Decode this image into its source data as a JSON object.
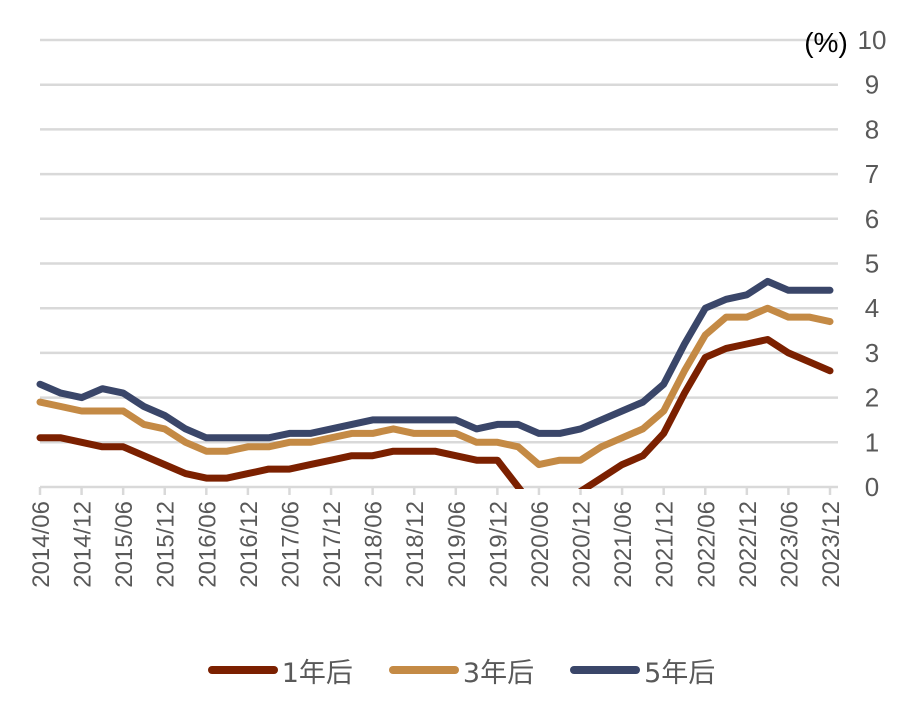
{
  "chart_data": {
    "type": "line",
    "title": "",
    "xlabel": "",
    "ylabel": "(%)",
    "y_unit_label": "(%)",
    "ylim": [
      0,
      10
    ],
    "yticks": [
      0,
      1,
      2,
      3,
      4,
      5,
      6,
      7,
      8,
      9,
      10
    ],
    "y_axis_position": "right",
    "grid": true,
    "legend_position": "bottom",
    "x_tick_labels": [
      "2014/06",
      "2014/12",
      "2015/06",
      "2015/12",
      "2016/06",
      "2016/12",
      "2017/06",
      "2017/12",
      "2018/06",
      "2018/12",
      "2019/06",
      "2019/12",
      "2020/06",
      "2020/12",
      "2021/06",
      "2021/12",
      "2022/06",
      "2022/12",
      "2023/06",
      "2023/12"
    ],
    "x": [
      "2014/06",
      "2014/09",
      "2014/12",
      "2015/03",
      "2015/06",
      "2015/09",
      "2015/12",
      "2016/03",
      "2016/06",
      "2016/09",
      "2016/12",
      "2017/03",
      "2017/06",
      "2017/09",
      "2017/12",
      "2018/03",
      "2018/06",
      "2018/09",
      "2018/12",
      "2019/03",
      "2019/06",
      "2019/09",
      "2019/12",
      "2020/03",
      "2020/06",
      "2020/09",
      "2020/12",
      "2021/03",
      "2021/06",
      "2021/09",
      "2021/12",
      "2022/03",
      "2022/06",
      "2022/09",
      "2022/12",
      "2023/03",
      "2023/06",
      "2023/09",
      "2023/12"
    ],
    "series": [
      {
        "name": "1年后",
        "color": "#7B2000",
        "values": [
          1.1,
          1.1,
          1.0,
          0.9,
          0.9,
          0.7,
          0.5,
          0.3,
          0.2,
          0.2,
          0.3,
          0.4,
          0.4,
          0.5,
          0.6,
          0.7,
          0.7,
          0.8,
          0.8,
          0.8,
          0.7,
          0.6,
          0.6,
          0.0,
          -0.6,
          -0.6,
          -0.1,
          0.2,
          0.5,
          0.7,
          1.2,
          2.1,
          2.9,
          3.1,
          3.2,
          3.3,
          3.0,
          2.8,
          2.6
        ]
      },
      {
        "name": "3年后",
        "color": "#C48A45",
        "values": [
          1.9,
          1.8,
          1.7,
          1.7,
          1.7,
          1.4,
          1.3,
          1.0,
          0.8,
          0.8,
          0.9,
          0.9,
          1.0,
          1.0,
          1.1,
          1.2,
          1.2,
          1.3,
          1.2,
          1.2,
          1.2,
          1.0,
          1.0,
          0.9,
          0.5,
          0.6,
          0.6,
          0.9,
          1.1,
          1.3,
          1.7,
          2.6,
          3.4,
          3.8,
          3.8,
          4.0,
          3.8,
          3.8,
          3.7
        ]
      },
      {
        "name": "5年后",
        "color": "#3A4669",
        "values": [
          2.3,
          2.1,
          2.0,
          2.2,
          2.1,
          1.8,
          1.6,
          1.3,
          1.1,
          1.1,
          1.1,
          1.1,
          1.2,
          1.2,
          1.3,
          1.4,
          1.5,
          1.5,
          1.5,
          1.5,
          1.5,
          1.3,
          1.4,
          1.4,
          1.2,
          1.2,
          1.3,
          1.5,
          1.7,
          1.9,
          2.3,
          3.2,
          4.0,
          4.2,
          4.3,
          4.6,
          4.4,
          4.4,
          4.4
        ]
      }
    ]
  },
  "legend": {
    "items": [
      {
        "label": "1年后",
        "color": "#7B2000"
      },
      {
        "label": "3年后",
        "color": "#C48A45"
      },
      {
        "label": "5年后",
        "color": "#3A4669"
      }
    ]
  },
  "style": {
    "grid_color": "#D9D9D9",
    "tick_color": "#595959"
  }
}
